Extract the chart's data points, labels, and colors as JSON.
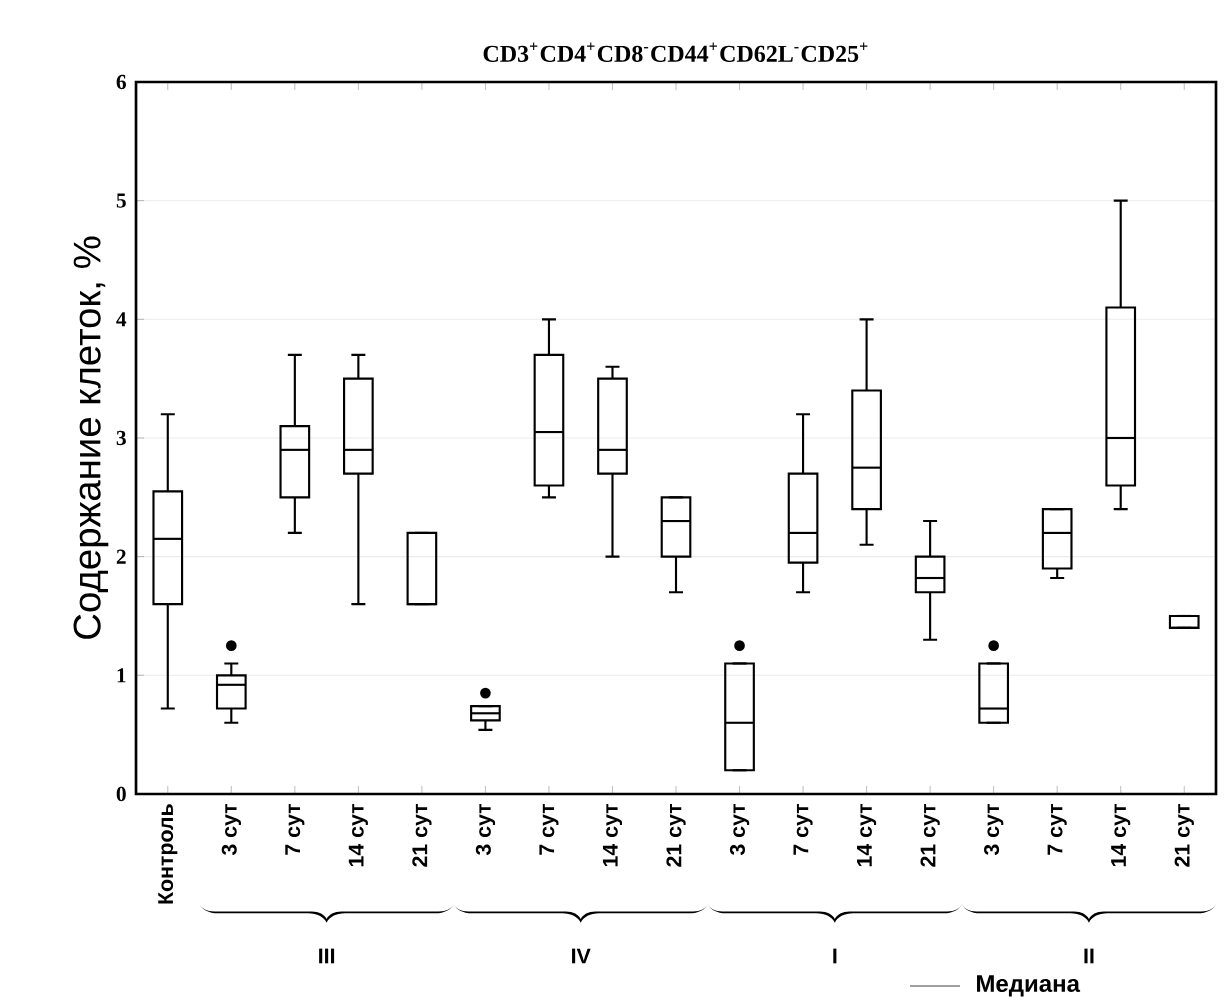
{
  "chart_data": {
    "type": "box",
    "title": "CD3$^{+}$CD4$^{+}$CD8$^{-}$CD44$^{+}$CD62L$^{-}$CD25$^{+}$",
    "ylabel": "Содержание клеток, %",
    "categories": [
      "Контроль",
      "3 сут",
      "7 сут",
      "14 сут",
      "21 сут",
      "3 сут",
      "7 сут",
      "14 сут",
      "21 сут",
      "3 сут",
      "7 сут",
      "14 сут",
      "21 сут",
      "3 сут",
      "7 сут",
      "14 сут",
      "21 сут"
    ],
    "boxes": [
      {
        "low": 0.72,
        "q1": 1.6,
        "median": 2.15,
        "q3": 2.55,
        "high": 3.2
      },
      {
        "low": 0.6,
        "q1": 0.72,
        "median": 0.92,
        "q3": 1.0,
        "high": 1.1,
        "outliers": [
          1.25
        ]
      },
      {
        "low": 2.2,
        "q1": 2.5,
        "median": 2.9,
        "q3": 3.1,
        "high": 3.7
      },
      {
        "low": 1.6,
        "q1": 2.7,
        "median": 2.9,
        "q3": 3.5,
        "high": 3.7
      },
      {
        "low": 1.6,
        "q1": 1.6,
        "median": 1.6,
        "q3": 2.2,
        "high": 2.2
      },
      {
        "low": 0.54,
        "q1": 0.62,
        "median": 0.68,
        "q3": 0.74,
        "high": 0.74,
        "outliers": [
          0.85
        ]
      },
      {
        "low": 2.5,
        "q1": 2.6,
        "median": 3.05,
        "q3": 3.7,
        "high": 4.0
      },
      {
        "low": 2.0,
        "q1": 2.7,
        "median": 2.9,
        "q3": 3.5,
        "high": 3.6
      },
      {
        "low": 1.7,
        "q1": 2.0,
        "median": 2.3,
        "q3": 2.5,
        "high": 2.5
      },
      {
        "low": 0.2,
        "q1": 0.2,
        "median": 0.6,
        "q3": 1.1,
        "high": 1.1,
        "outliers": [
          1.25
        ]
      },
      {
        "low": 1.7,
        "q1": 1.95,
        "median": 2.2,
        "q3": 2.7,
        "high": 3.2
      },
      {
        "low": 2.1,
        "q1": 2.4,
        "median": 2.75,
        "q3": 3.4,
        "high": 4.0
      },
      {
        "low": 1.3,
        "q1": 1.7,
        "median": 1.82,
        "q3": 2.0,
        "high": 2.3
      },
      {
        "low": 0.6,
        "q1": 0.6,
        "median": 0.72,
        "q3": 1.1,
        "high": 1.1,
        "outliers": [
          1.25
        ]
      },
      {
        "low": 1.82,
        "q1": 1.9,
        "median": 2.2,
        "q3": 2.4,
        "high": 2.4
      },
      {
        "low": 2.4,
        "q1": 2.6,
        "median": 3.0,
        "q3": 4.1,
        "high": 5.0
      },
      {
        "low": 1.4,
        "q1": 1.4,
        "median": 1.4,
        "q3": 1.5,
        "high": 1.5
      }
    ],
    "color": "#000000",
    "ylim": [
      0,
      6
    ],
    "yticks": [
      0,
      1,
      2,
      3,
      4,
      5,
      6
    ],
    "grid": "y",
    "annotations": [
      "III",
      "IV",
      "I",
      "II",
      "Медиана"
    ]
  }
}
